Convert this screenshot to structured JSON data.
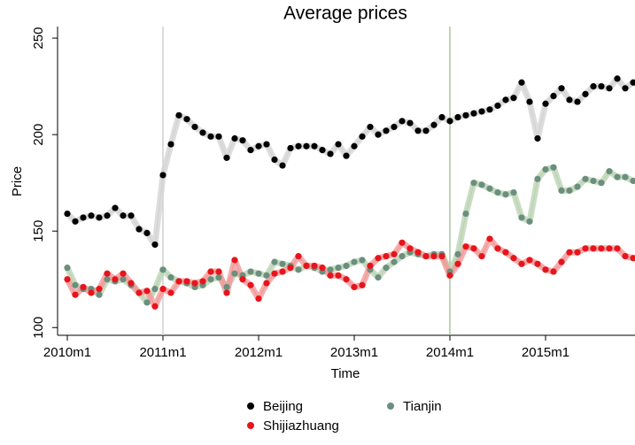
{
  "chart_data": {
    "type": "line",
    "title": "Average prices",
    "x_label": "Time",
    "y_label": "Price",
    "categories": [
      "2010m1",
      null,
      null,
      null,
      null,
      null,
      null,
      null,
      null,
      null,
      null,
      null,
      "2011m1",
      null,
      null,
      null,
      null,
      null,
      null,
      null,
      null,
      null,
      null,
      null,
      "2012m1",
      null,
      null,
      null,
      null,
      null,
      null,
      null,
      null,
      null,
      null,
      null,
      "2013m1",
      null,
      null,
      null,
      null,
      null,
      null,
      null,
      null,
      null,
      null,
      null,
      "2014m1",
      null,
      null,
      null,
      null,
      null,
      null,
      null,
      null,
      null,
      null,
      null,
      "2015m1",
      null,
      null,
      null,
      null,
      null,
      null,
      null,
      null,
      null,
      null,
      null
    ],
    "series": [
      {
        "name": "Beijing",
        "color": "#000000",
        "band_color": "#d4d4d4",
        "values": [
          159,
          155,
          157,
          158,
          157,
          158,
          162,
          158,
          158,
          151,
          149,
          143,
          179,
          195,
          210,
          208,
          204,
          201,
          199,
          199,
          188,
          198,
          197,
          192,
          194,
          195,
          187,
          184,
          193,
          194,
          194,
          194,
          192,
          190,
          195,
          189,
          194,
          199,
          204,
          200,
          202,
          204,
          207,
          206,
          202,
          202,
          205,
          209,
          207,
          209,
          210,
          211,
          212,
          213,
          215,
          218,
          219,
          227,
          217,
          198,
          216,
          220,
          224,
          218,
          217,
          221,
          225,
          225,
          224,
          229,
          224,
          227
        ]
      },
      {
        "name": "Tianjin",
        "color": "#6b8f7e",
        "band_color": "#bcd4b4",
        "values": [
          131,
          122,
          120,
          120,
          117,
          125,
          124,
          125,
          122,
          118,
          113,
          120,
          130,
          126,
          124,
          123,
          121,
          122,
          125,
          126,
          121,
          128,
          127,
          129,
          128,
          127,
          134,
          133,
          132,
          130,
          132,
          131,
          129,
          130,
          131,
          132,
          134,
          135,
          130,
          126,
          131,
          134,
          137,
          139,
          138,
          137,
          138,
          138,
          129,
          138,
          159,
          175,
          174,
          172,
          170,
          169,
          170,
          157,
          155,
          177,
          182,
          183,
          171,
          171,
          173,
          177,
          176,
          175,
          181,
          178,
          178,
          176
        ]
      },
      {
        "name": "Shijiazhuang",
        "color": "#e8141b",
        "band_color": "#f29a9a",
        "values": [
          125,
          117,
          121,
          118,
          120,
          128,
          125,
          128,
          123,
          118,
          119,
          111,
          120,
          118,
          124,
          124,
          123,
          124,
          129,
          129,
          118,
          135,
          125,
          122,
          115,
          123,
          128,
          129,
          131,
          137,
          132,
          132,
          131,
          127,
          127,
          125,
          121,
          122,
          132,
          136,
          137,
          138,
          144,
          141,
          139,
          137,
          137,
          137,
          127,
          133,
          142,
          141,
          137,
          146,
          141,
          139,
          136,
          133,
          135,
          133,
          130,
          129,
          134,
          139,
          139,
          141,
          141,
          141,
          141,
          141,
          137,
          136
        ]
      }
    ],
    "reference_lines": [
      {
        "at": "2011m1",
        "color": "#d0d0d0"
      },
      {
        "at": "2014m1",
        "color": "#a8c8a0"
      }
    ],
    "ylim": [
      96,
      256
    ],
    "yticks": [
      100,
      150,
      200,
      250
    ],
    "grid": false,
    "legend_position": "bottom"
  }
}
